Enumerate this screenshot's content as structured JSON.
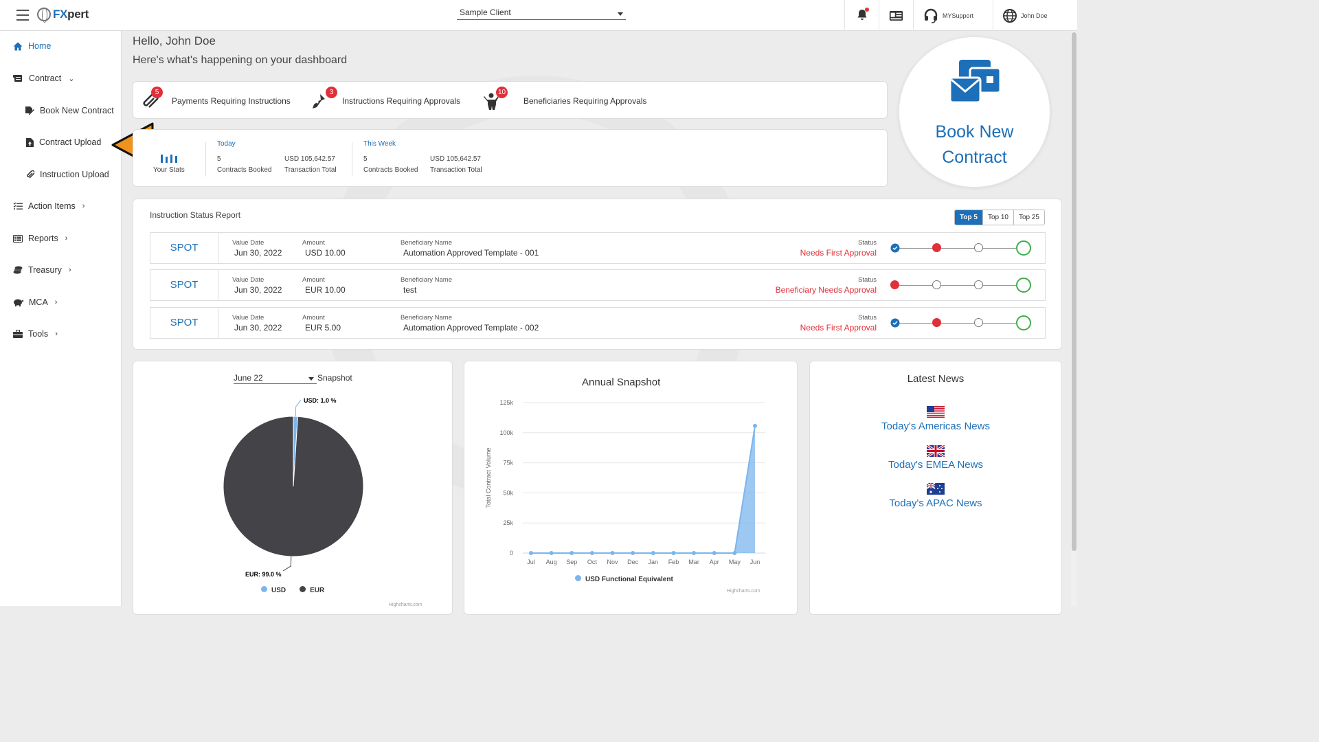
{
  "header": {
    "app_name_prefix": "FX",
    "app_name_suffix": "pert",
    "client_select": "Sample Client",
    "support_label": "MYSupport",
    "user_label": "John Doe"
  },
  "sidebar": {
    "items": [
      {
        "label": "Home"
      },
      {
        "label": "Contract"
      },
      {
        "label": "Book New Contract"
      },
      {
        "label": "Contract Upload"
      },
      {
        "label": "Instruction Upload"
      },
      {
        "label": "Action Items"
      },
      {
        "label": "Reports"
      },
      {
        "label": "Treasury"
      },
      {
        "label": "MCA"
      },
      {
        "label": "Tools"
      }
    ]
  },
  "greeting": {
    "hello": "Hello, John Doe",
    "subtitle": "Here's what's happening on your dashboard"
  },
  "alerts": [
    {
      "count": "5",
      "label": "Payments Requiring Instructions"
    },
    {
      "count": "3",
      "label": "Instructions Requiring Approvals"
    },
    {
      "count": "10",
      "label": "Beneficiaries Requiring Approvals"
    }
  ],
  "stats": {
    "your_stats": "Your Stats",
    "today": {
      "title": "Today",
      "contracts": "5",
      "contracts_label": "Contracts Booked",
      "total": "USD 105,642.57",
      "total_label": "Transaction Total"
    },
    "week": {
      "title": "This Week",
      "contracts": "5",
      "contracts_label": "Contracts Booked",
      "total": "USD 105,642.57",
      "total_label": "Transaction Total"
    }
  },
  "book_new": {
    "line1": "Book New",
    "line2": "Contract"
  },
  "isr": {
    "title": "Instruction Status Report",
    "buttons": [
      "Top 5",
      "Top 10",
      "Top 25"
    ],
    "labels": {
      "value_date": "Value Date",
      "amount": "Amount",
      "beneficiary": "Beneficiary Name",
      "status": "Status"
    },
    "rows": [
      {
        "type": "SPOT",
        "value_date": "Jun 30, 2022",
        "amount": "USD 10.00",
        "beneficiary": "Automation Approved Template - 001",
        "status": "Needs First Approval"
      },
      {
        "type": "SPOT",
        "value_date": "Jun 30, 2022",
        "amount": "EUR 10.00",
        "beneficiary": "test",
        "status": "Beneficiary Needs Approval"
      },
      {
        "type": "SPOT",
        "value_date": "Jun 30, 2022",
        "amount": "EUR 5.00",
        "beneficiary": "Automation Approved Template - 002",
        "status": "Needs First Approval"
      }
    ]
  },
  "snapshot": {
    "month": "June 22",
    "label": "Snapshot",
    "credit": "Highcharts.com"
  },
  "annual": {
    "title": "Annual Snapshot",
    "credit": "Highcharts.com"
  },
  "news": {
    "title": "Latest News",
    "links": [
      "Today's Americas News",
      "Today's EMEA News",
      "Today's APAC News"
    ]
  },
  "colors": {
    "accent": "#1c6fb8",
    "danger": "#e0303a",
    "pie_usd": "#7cb5ec",
    "pie_eur": "#434348",
    "arrow": "#f0921e"
  },
  "chart_data": [
    {
      "type": "pie",
      "categories": [
        "USD",
        "EUR"
      ],
      "values": [
        1.0,
        99.0
      ],
      "labels": [
        "USD: 1.0 %",
        "EUR: 99.0 %"
      ],
      "legend": [
        "USD",
        "EUR"
      ],
      "legend_position": "bottom"
    },
    {
      "type": "area",
      "title": "Annual Snapshot",
      "ylabel": "Total Contract Volume",
      "categories": [
        "Jul",
        "Aug",
        "Sep",
        "Oct",
        "Nov",
        "Dec",
        "Jan",
        "Feb",
        "Mar",
        "Apr",
        "May",
        "Jun"
      ],
      "series": [
        {
          "name": "USD Functional Equivalent",
          "values": [
            0,
            0,
            0,
            0,
            0,
            0,
            0,
            0,
            0,
            0,
            0,
            105642.57
          ]
        }
      ],
      "yticks": [
        "0",
        "25k",
        "50k",
        "75k",
        "100k",
        "125k"
      ],
      "ylim": [
        0,
        125000
      ],
      "grid": true,
      "legend_position": "bottom"
    }
  ]
}
